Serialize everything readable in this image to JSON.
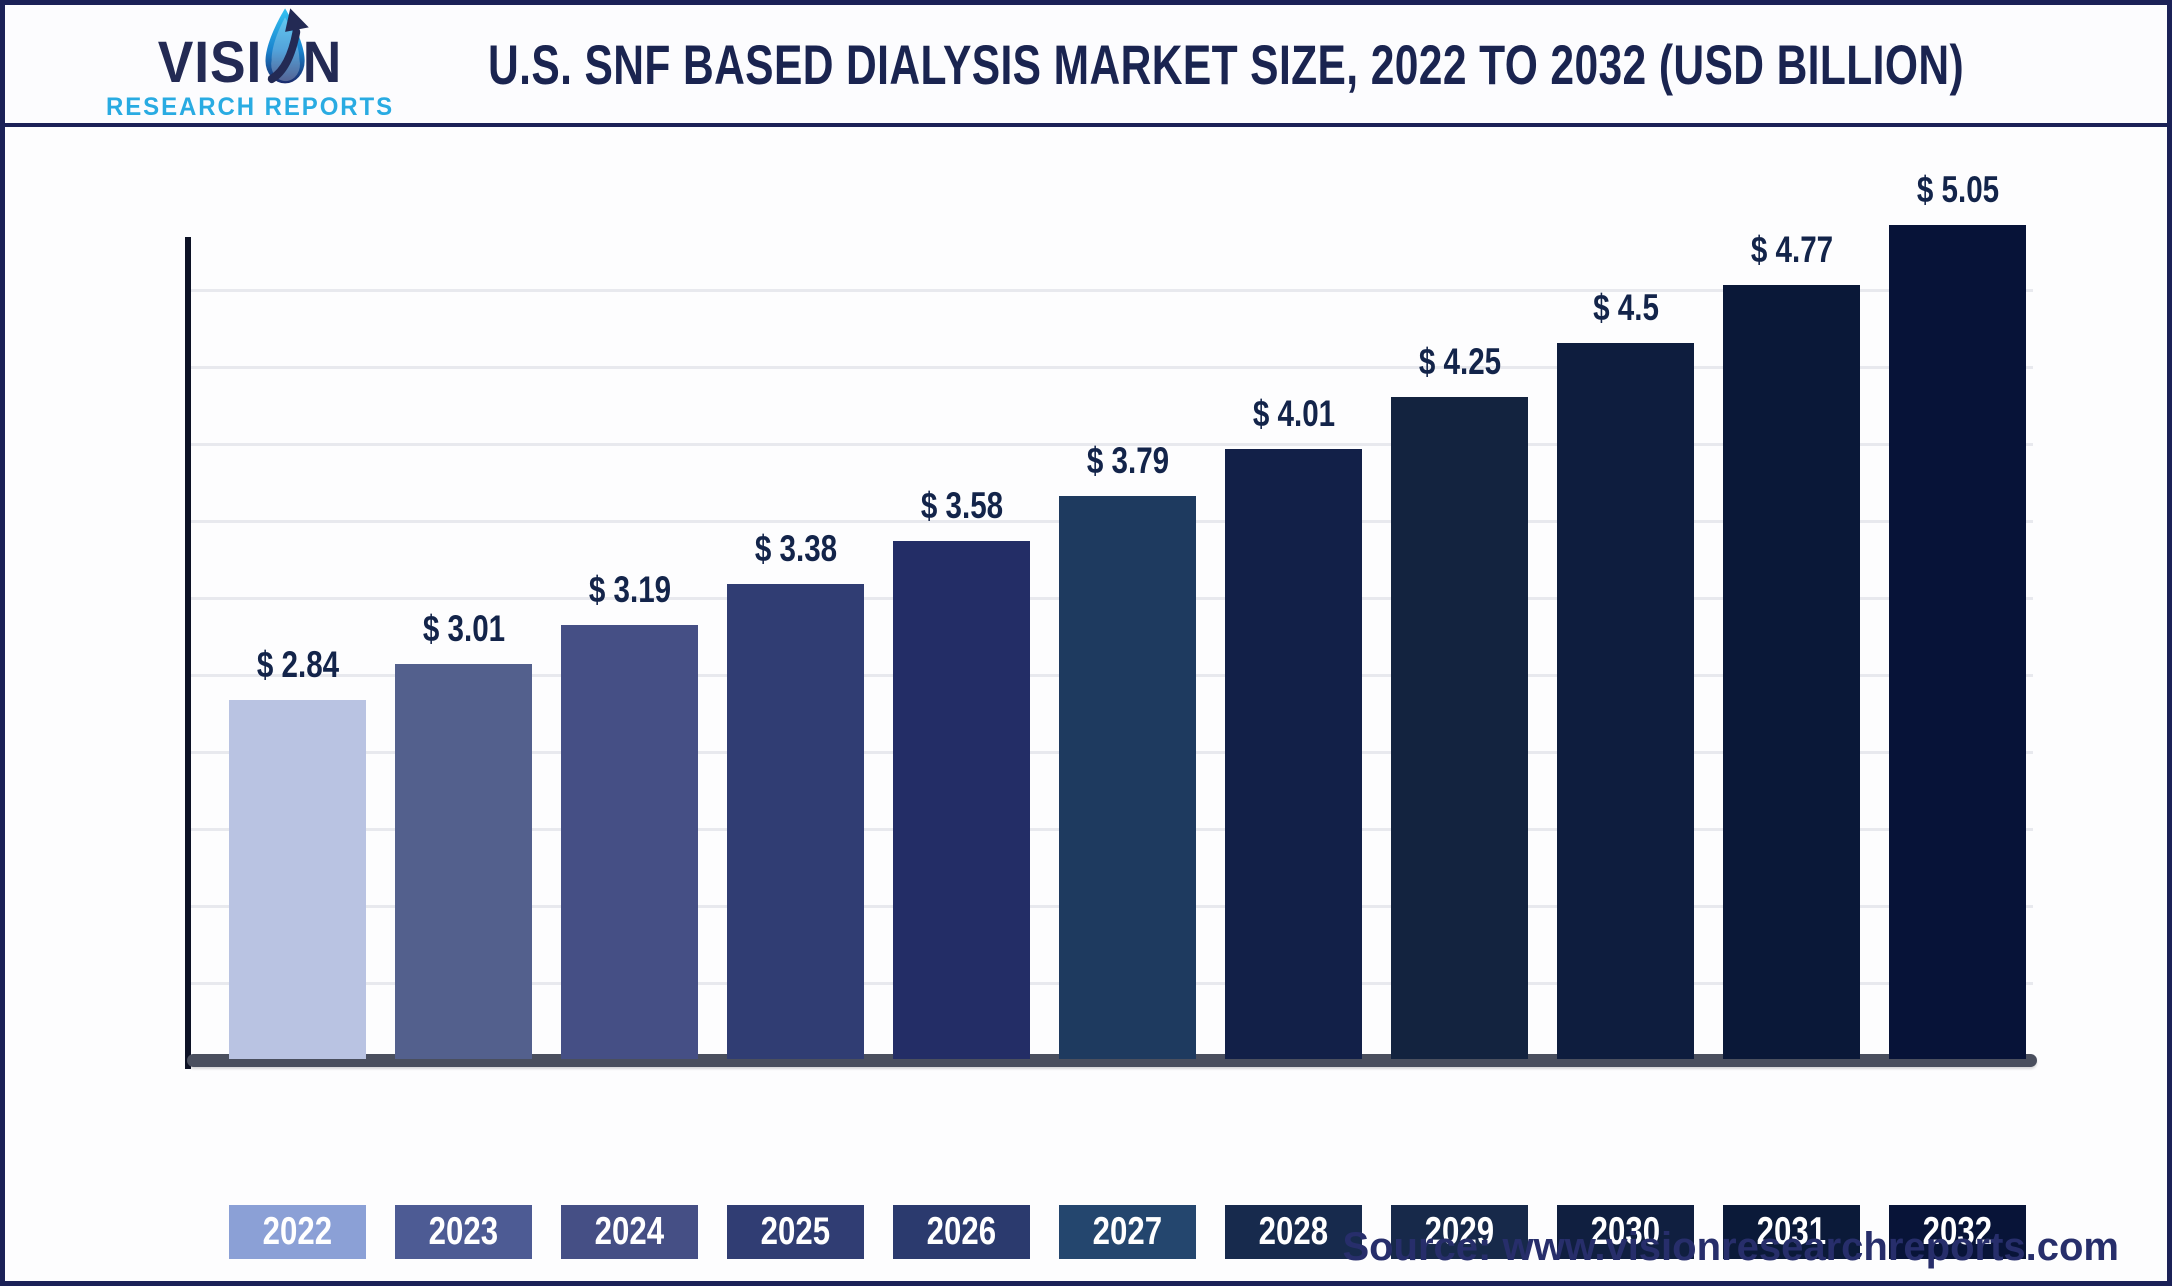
{
  "header": {
    "logo": {
      "wordmark_pre": "VISI",
      "wordmark_post": "N",
      "subtitle": "RESEARCH REPORTS"
    },
    "title": "U.S. SNF BASED DIALYSIS MARKET SIZE, 2022 TO 2032 (USD BILLION)"
  },
  "chart_data": {
    "type": "bar",
    "title": "U.S. SNF Based Dialysis Market Size, 2022 to 2032 (USD Billion)",
    "unit": "USD Billion",
    "categories": [
      "2022",
      "2023",
      "2024",
      "2025",
      "2026",
      "2027",
      "2028",
      "2029",
      "2030",
      "2031",
      "2032"
    ],
    "values": [
      2.84,
      3.01,
      3.19,
      3.38,
      3.58,
      3.79,
      4.01,
      4.25,
      4.5,
      4.77,
      5.05
    ],
    "value_labels": [
      "$ 2.84",
      "$ 3.01",
      "$ 3.19",
      "$ 3.38",
      "$ 3.58",
      "$ 3.79",
      "$ 4.01",
      "$ 4.25",
      "$ 4.5",
      "$ 4.77",
      "$ 5.05"
    ],
    "bar_colors": [
      "#b9c3e2",
      "#53608d",
      "#454f85",
      "#303d73",
      "#232d66",
      "#1e3a5f",
      "#122048",
      "#13233f",
      "#0e1d3e",
      "#0a1838",
      "#071338"
    ],
    "tick_label_bg": [
      "#8ba0d6",
      "#4d5b94",
      "#454f85",
      "#303d73",
      "#2b3a6e",
      "#24466e",
      "#172a4d",
      "#17294a",
      "#101f40",
      "#0b1a39",
      "#081438"
    ],
    "tick_label_color": "#ffffff",
    "grid": "horizontal-only",
    "gridline_count": 10,
    "y_axis_tick_labels_visible": false,
    "legend": "none"
  },
  "footer": {
    "source": "Source: www.visionresearchreports.com"
  },
  "colors": {
    "border_navy": "#1b2157",
    "title_text": "#1a2450",
    "value_label_text": "#13244a",
    "axis_bar": "#4a4f5e",
    "y_axis_line": "#0d1226",
    "gridline": "#e8e9ee",
    "source_text": "#272e6b",
    "logo_navy": "#232a54",
    "logo_blue": "#29abe2"
  }
}
